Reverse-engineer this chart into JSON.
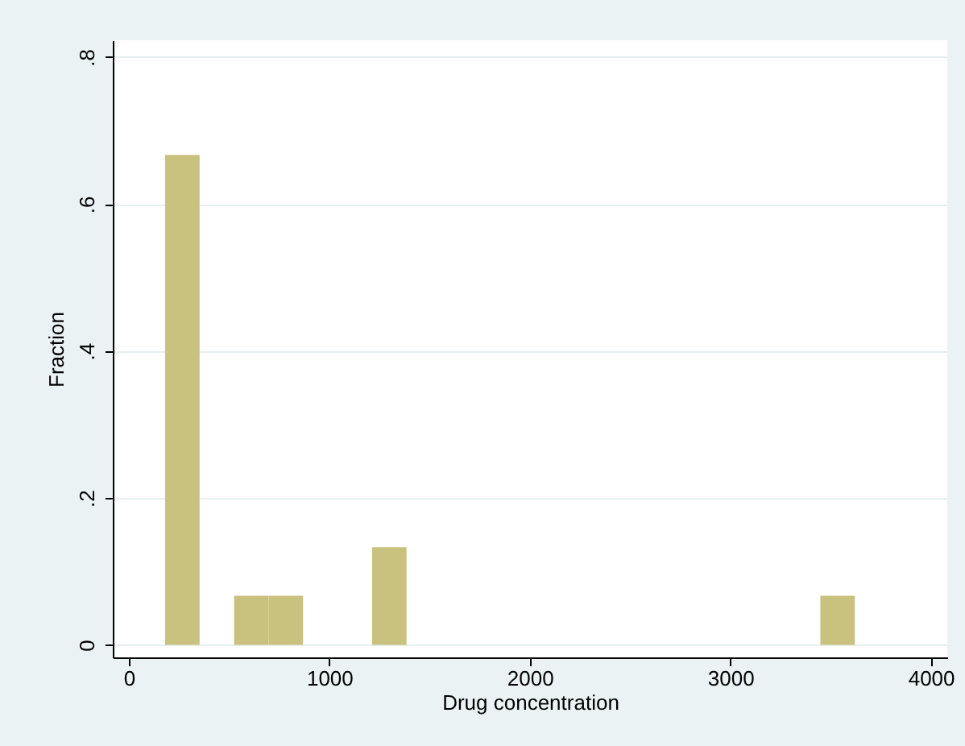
{
  "chart_data": {
    "type": "histogram",
    "xlabel": "Drug concentration",
    "ylabel": "Fraction",
    "bins": [
      181,
      353,
      525,
      697,
      869,
      1041,
      1213,
      1385,
      1557,
      1729,
      1901,
      2073,
      2245,
      2417,
      2589,
      2761,
      2933,
      3105,
      3277,
      3449,
      3621
    ],
    "values": [
      0.667,
      0,
      0.067,
      0.067,
      0,
      0,
      0.133,
      0,
      0,
      0,
      0,
      0,
      0,
      0,
      0,
      0,
      0,
      0,
      0,
      0.067
    ],
    "color": "#c9c27f",
    "xlim": [
      -80,
      4082
    ],
    "xticks": [
      0,
      1000,
      2000,
      3000,
      4000
    ],
    "ylim": [
      -0.017,
      0.823
    ],
    "yticks": [
      {
        "value": 0,
        "label": "0"
      },
      {
        "value": 0.2,
        "label": ".2"
      },
      {
        "value": 0.4,
        "label": ".4"
      },
      {
        "value": 0.6,
        "label": ".6"
      },
      {
        "value": 0.8,
        "label": ".8"
      }
    ],
    "grid": "y"
  }
}
